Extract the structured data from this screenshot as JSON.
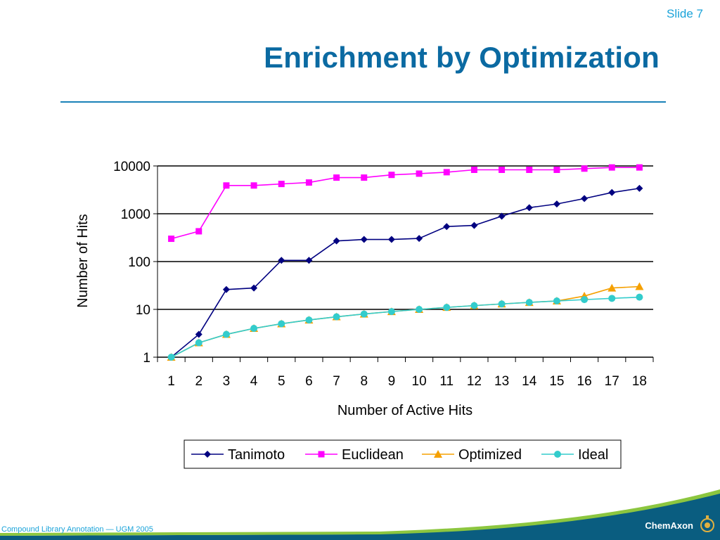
{
  "slide": {
    "number_label": "Slide 7"
  },
  "title": "Enrichment by Optimization",
  "footer": {
    "text": "Compound Library Annotation — UGM 2005",
    "brand": "ChemAxon"
  },
  "colors": {
    "title": "#0b6aa2",
    "accent": "#1aa3d9",
    "footer_band": "#0a5d80",
    "tanimoto": "#000080",
    "euclidean": "#ff00ff",
    "optimized": "#f5a000",
    "ideal": "#33cccc"
  },
  "chart_data": {
    "type": "line",
    "xlabel": "Number of Active Hits",
    "ylabel": "Number of Hits",
    "y_scale": "log",
    "ylim": [
      1,
      10000
    ],
    "y_ticks": [
      1,
      10,
      100,
      1000,
      10000
    ],
    "categories": [
      "1",
      "2",
      "3",
      "4",
      "5",
      "6",
      "7",
      "8",
      "9",
      "10",
      "11",
      "12",
      "13",
      "14",
      "15",
      "16",
      "17",
      "18"
    ],
    "grid": "horizontal major lines",
    "legend_position": "bottom",
    "series": [
      {
        "name": "Tanimoto",
        "marker": "diamond",
        "color": "#000080",
        "values": [
          1,
          3,
          26,
          28,
          106,
          106,
          270,
          290,
          290,
          305,
          540,
          570,
          890,
          1340,
          1600,
          2080,
          2780,
          3400
        ]
      },
      {
        "name": "Euclidean",
        "marker": "square",
        "color": "#ff00ff",
        "values": [
          300,
          430,
          3900,
          3900,
          4200,
          4500,
          5700,
          5700,
          6500,
          6900,
          7400,
          8300,
          8300,
          8300,
          8300,
          8800,
          9300,
          9300
        ]
      },
      {
        "name": "Optimized",
        "marker": "triangle",
        "color": "#f5a000",
        "values": [
          1,
          2,
          3,
          4,
          5,
          6,
          7,
          8,
          9,
          10,
          11,
          12,
          13,
          14,
          15,
          19,
          28,
          30
        ]
      },
      {
        "name": "Ideal",
        "marker": "circle",
        "color": "#33cccc",
        "values": [
          1,
          2,
          3,
          4,
          5,
          6,
          7,
          8,
          9,
          10,
          11,
          12,
          13,
          14,
          15,
          16,
          17,
          18
        ]
      }
    ]
  }
}
